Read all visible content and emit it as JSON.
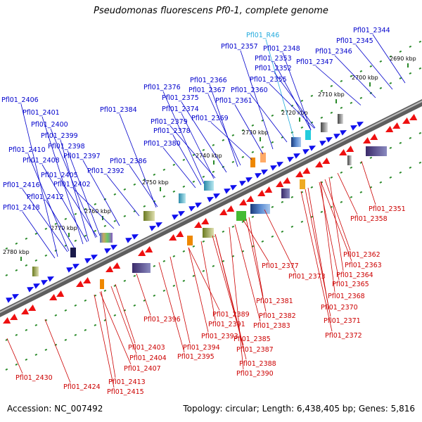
{
  "title": "Pseudomonas fluorescens Pf0-1, complete genome",
  "accession_text": "Accession: NC_007492",
  "summary_text": "Topology: circular; Length: 6,438,405 bp; Genes: 5,816",
  "colors": {
    "backbone": "#7a7a7a",
    "forward_gene": "#1010ee",
    "reverse_gene": "#ee1010",
    "forward_label": "#0000cc",
    "reverse_label": "#cc0000",
    "rna_label": "#22aadd",
    "tick": "#2a8a2a"
  },
  "ticks": [
    {
      "label": "2690 kbp"
    },
    {
      "label": "2700 kbp"
    },
    {
      "label": "2710 kbp"
    },
    {
      "label": "2720 kbp"
    },
    {
      "label": "2730 kbp"
    },
    {
      "label": "2740 kbp"
    },
    {
      "label": "2750 kbp"
    },
    {
      "label": "2760 kbp"
    },
    {
      "label": "2770 kbp"
    },
    {
      "label": "2780 kbp"
    }
  ],
  "top_labels": [
    {
      "text": "Pfl01_R46",
      "kind": "rna"
    },
    {
      "text": "Pfl01_2344",
      "kind": "fwd"
    },
    {
      "text": "Pfl01_2345",
      "kind": "fwd"
    },
    {
      "text": "Pfl01_2346",
      "kind": "fwd"
    },
    {
      "text": "Pfl01_2347",
      "kind": "fwd"
    },
    {
      "text": "Pfl01_2348",
      "kind": "fwd"
    },
    {
      "text": "Pfl01_2357",
      "kind": "fwd"
    },
    {
      "text": "Pfl01_2353",
      "kind": "fwd"
    },
    {
      "text": "Pfl01_2352",
      "kind": "fwd"
    },
    {
      "text": "Pfl01_2355",
      "kind": "fwd"
    },
    {
      "text": "Pfl01_2366",
      "kind": "fwd"
    },
    {
      "text": "Pfl01_2367",
      "kind": "fwd"
    },
    {
      "text": "Pfl01_2360",
      "kind": "fwd"
    },
    {
      "text": "Pfl01_2376",
      "kind": "fwd"
    },
    {
      "text": "Pfl01_2375",
      "kind": "fwd"
    },
    {
      "text": "Pfl01_2361",
      "kind": "fwd"
    },
    {
      "text": "Pfl01_2374",
      "kind": "fwd"
    },
    {
      "text": "Pfl01_2384",
      "kind": "fwd"
    },
    {
      "text": "Pfl01_2369",
      "kind": "fwd"
    },
    {
      "text": "Pfl01_2379",
      "kind": "fwd"
    },
    {
      "text": "Pfl01_2378",
      "kind": "fwd"
    },
    {
      "text": "Pfl01_2380",
      "kind": "fwd"
    },
    {
      "text": "Pfl01_2406",
      "kind": "fwd"
    },
    {
      "text": "Pfl01_2401",
      "kind": "fwd"
    },
    {
      "text": "Pfl01_2400",
      "kind": "fwd"
    },
    {
      "text": "Pfl01_2399",
      "kind": "fwd"
    },
    {
      "text": "Pfl01_2398",
      "kind": "fwd"
    },
    {
      "text": "Pfl01_2397",
      "kind": "fwd"
    },
    {
      "text": "Pfl01_2410",
      "kind": "fwd"
    },
    {
      "text": "Pfl01_2408",
      "kind": "fwd"
    },
    {
      "text": "Pfl01_2386",
      "kind": "fwd"
    },
    {
      "text": "Pfl01_2392",
      "kind": "fwd"
    },
    {
      "text": "Pfl01_2405",
      "kind": "fwd"
    },
    {
      "text": "Pfl01_2402",
      "kind": "fwd"
    },
    {
      "text": "Pfl01_2416",
      "kind": "fwd"
    },
    {
      "text": "Pfl01_2412",
      "kind": "fwd"
    },
    {
      "text": "Pfl01_2418",
      "kind": "fwd"
    }
  ],
  "bottom_labels": [
    {
      "text": "Pfl01_2351"
    },
    {
      "text": "Pfl01_2358"
    },
    {
      "text": "Pfl01_2362"
    },
    {
      "text": "Pfl01_2363"
    },
    {
      "text": "Pfl01_2364"
    },
    {
      "text": "Pfl01_2365"
    },
    {
      "text": "Pfl01_2377"
    },
    {
      "text": "Pfl01_2373"
    },
    {
      "text": "Pfl01_2368"
    },
    {
      "text": "Pfl01_2370"
    },
    {
      "text": "Pfl01_2371"
    },
    {
      "text": "Pfl01_2372"
    },
    {
      "text": "Pfl01_2381"
    },
    {
      "text": "Pfl01_2382"
    },
    {
      "text": "Pfl01_2383"
    },
    {
      "text": "Pfl01_2389"
    },
    {
      "text": "Pfl01_2391"
    },
    {
      "text": "Pfl01_2393"
    },
    {
      "text": "Pfl01_2385"
    },
    {
      "text": "Pfl01_2387"
    },
    {
      "text": "Pfl01_2396"
    },
    {
      "text": "Pfl01_2394"
    },
    {
      "text": "Pfl01_2395"
    },
    {
      "text": "Pfl01_2388"
    },
    {
      "text": "Pfl01_2390"
    },
    {
      "text": "Pfl01_2403"
    },
    {
      "text": "Pfl01_2404"
    },
    {
      "text": "Pfl01_2407"
    },
    {
      "text": "Pfl01_2413"
    },
    {
      "text": "Pfl01_2415"
    },
    {
      "text": "Pfl01_2424"
    },
    {
      "text": "Pfl01_2430"
    }
  ]
}
